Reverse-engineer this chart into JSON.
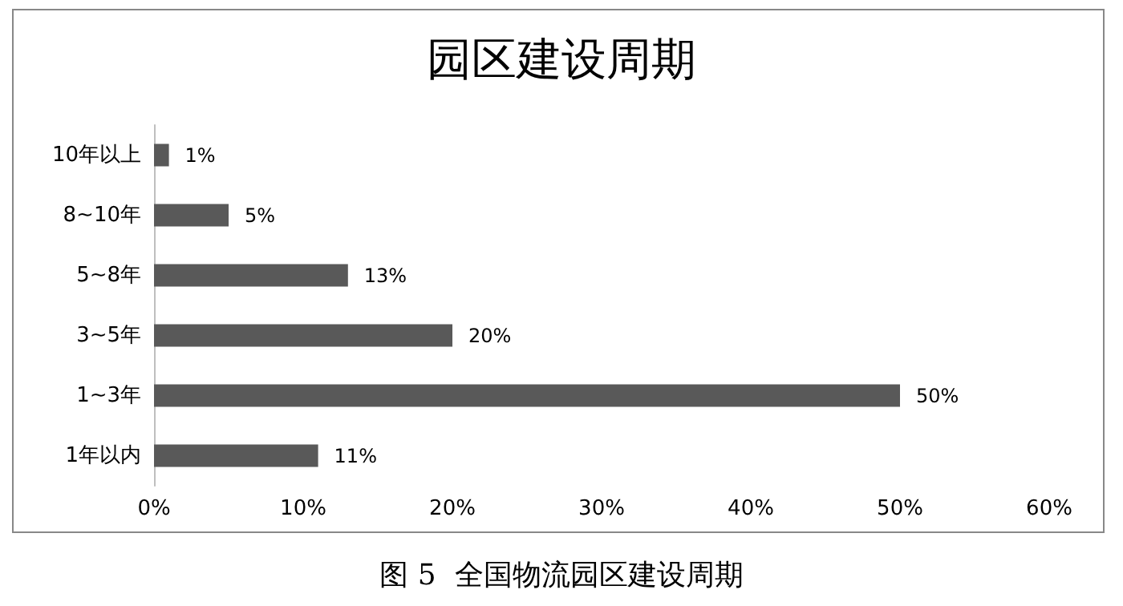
{
  "chart_data": {
    "type": "bar",
    "orientation": "horizontal",
    "title": "园区建设周期",
    "categories": [
      "10年以上",
      "8~10年",
      "5~8年",
      "3~5年",
      "1~3年",
      "1年以内"
    ],
    "values": [
      1,
      5,
      13,
      20,
      50,
      11
    ],
    "value_labels": [
      "1%",
      "5%",
      "13%",
      "20%",
      "50%",
      "11%"
    ],
    "color": "#595959",
    "xlim": [
      0,
      60
    ],
    "xticks": [
      {
        "value": 0,
        "label": "0%"
      },
      {
        "value": 10,
        "label": "10%"
      },
      {
        "value": 20,
        "label": "20%"
      },
      {
        "value": 30,
        "label": "30%"
      },
      {
        "value": 40,
        "label": "40%"
      },
      {
        "value": 50,
        "label": "50%"
      },
      {
        "value": 60,
        "label": "60%"
      }
    ],
    "grid": false,
    "annotations": [
      "图 5  全国物流园区建设周期"
    ]
  }
}
